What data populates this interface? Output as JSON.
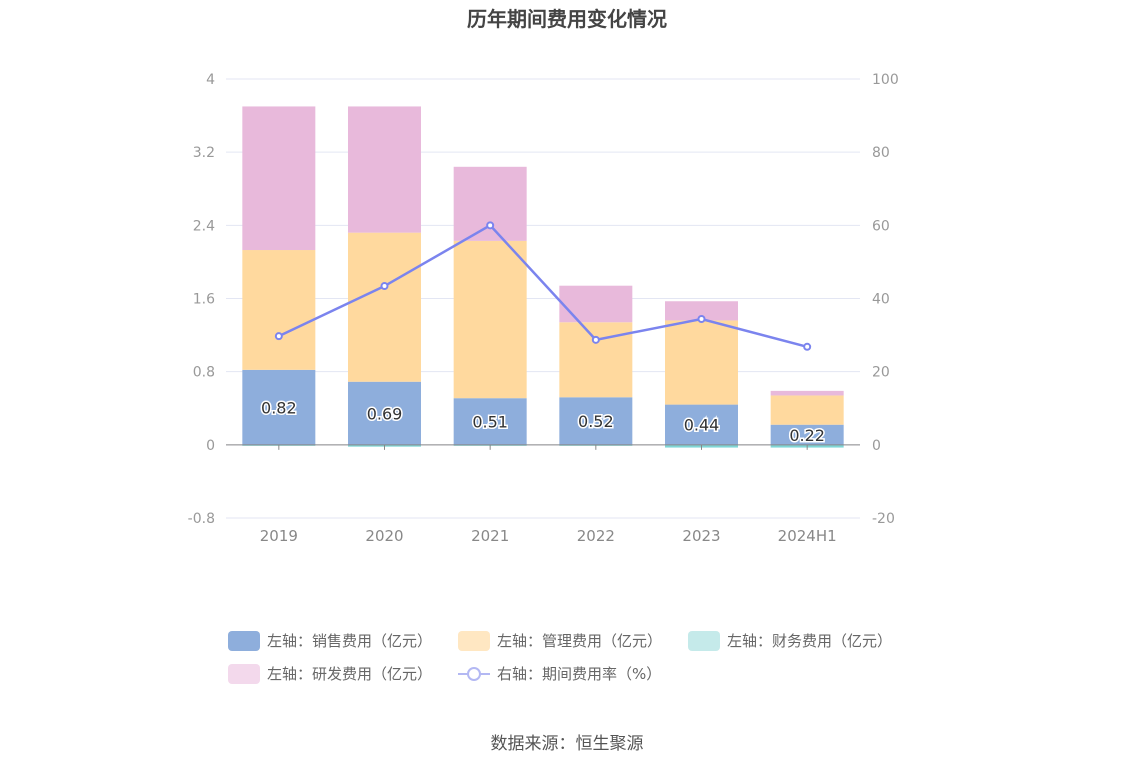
{
  "title": "历年期间费用变化情况",
  "source": "数据来源：恒生聚源",
  "chart_data": {
    "type": "bar",
    "stacked": true,
    "categories": [
      "2019",
      "2020",
      "2021",
      "2022",
      "2023",
      "2024H1"
    ],
    "left_axis": {
      "ylim": [
        -0.8,
        4
      ],
      "ticks": [
        "-0.8",
        "0",
        "0.8",
        "1.6",
        "2.4",
        "3.2",
        "4"
      ]
    },
    "right_axis": {
      "ylim": [
        -20,
        100
      ],
      "ticks": [
        "-20",
        "0",
        "20",
        "40",
        "60",
        "80",
        "100"
      ]
    },
    "grid": true,
    "legend_position": "bottom",
    "series": [
      {
        "name": "左轴：销售费用（亿元）",
        "type": "bar",
        "axis": "left",
        "color": "#8eaedc",
        "values": [
          0.82,
          0.69,
          0.51,
          0.52,
          0.44,
          0.22
        ],
        "labels": [
          "0.82",
          "0.69",
          "0.51",
          "0.52",
          "0.44",
          "0.22"
        ]
      },
      {
        "name": "左轴：管理费用（亿元）",
        "type": "bar",
        "axis": "left",
        "color": "#ffd99e",
        "values": [
          1.31,
          1.63,
          1.72,
          0.82,
          0.92,
          0.32
        ]
      },
      {
        "name": "左轴：财务费用（亿元）",
        "type": "bar",
        "axis": "left",
        "color": "#7fd6d6",
        "values": [
          -0.005,
          -0.02,
          -0.005,
          -0.01,
          -0.03,
          -0.03
        ]
      },
      {
        "name": "左轴：研发费用（亿元）",
        "type": "bar",
        "axis": "left",
        "color": "#e8b9db",
        "values": [
          1.57,
          1.38,
          0.81,
          0.4,
          0.21,
          0.05
        ]
      },
      {
        "name": "右轴：期间费用率（%）",
        "type": "line",
        "axis": "right",
        "color": "#7b84ee",
        "values": [
          29.7,
          43.4,
          60.0,
          28.7,
          34.4,
          26.8
        ]
      }
    ]
  }
}
